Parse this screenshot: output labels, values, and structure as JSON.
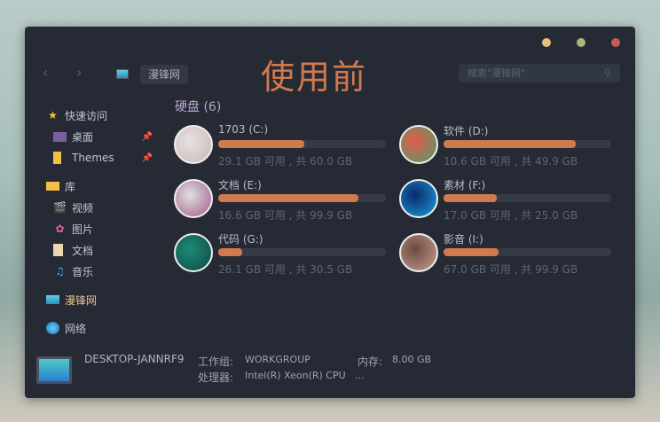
{
  "window": {
    "controls": [
      {
        "name": "minimize",
        "color": "#e8c07a"
      },
      {
        "name": "maximize",
        "color": "#a8b87a"
      },
      {
        "name": "close",
        "color": "#c85a5a"
      }
    ]
  },
  "nav": {
    "back": "‹",
    "forward": "›",
    "breadcrumb": "漫锋网"
  },
  "overlay_text": "使用前",
  "search": {
    "placeholder": "搜索\"漫锋网\"",
    "icon": "search-icon"
  },
  "sidebar": {
    "quick_access": "快速访问",
    "quick_items": [
      {
        "label": "桌面",
        "pinned": true
      },
      {
        "label": "Themes",
        "pinned": true
      }
    ],
    "library": "库",
    "library_items": [
      {
        "label": "视频"
      },
      {
        "label": "图片"
      },
      {
        "label": "文档"
      },
      {
        "label": "音乐"
      }
    ],
    "this_pc": "漫锋网",
    "network": "网络"
  },
  "section_title": "硬盘 (6)",
  "drives": [
    {
      "name": "1703 (C:)",
      "status": "29.1 GB 可用 , 共 60.0 GB",
      "used_fraction": 0.515,
      "colors": [
        "#e8e0e0",
        "#c9b8b8"
      ]
    },
    {
      "name": "软件 (D:)",
      "status": "10.6 GB 可用 , 共 49.9 GB",
      "used_fraction": 0.79,
      "colors": [
        "#e25b4b",
        "#4c9f6a"
      ]
    },
    {
      "name": "文档 (E:)",
      "status": "16.6 GB 可用 , 共 99.9 GB",
      "used_fraction": 0.834,
      "colors": [
        "#e0e0e0",
        "#a05a8a"
      ]
    },
    {
      "name": "素材 (F:)",
      "status": "17.0 GB 可用 , 共 25.0 GB",
      "used_fraction": 0.32,
      "colors": [
        "#0a2a6a",
        "#1a9fe0"
      ]
    },
    {
      "name": "代码 (G:)",
      "status": "26.1 GB 可用 , 共 30.5 GB",
      "used_fraction": 0.144,
      "colors": [
        "#1e8a7a",
        "#0e4a40"
      ]
    },
    {
      "name": "影音 (I:)",
      "status": "67.0 GB 可用 , 共 99.9 GB",
      "used_fraction": 0.33,
      "colors": [
        "#6a4a40",
        "#c8a090"
      ]
    }
  ],
  "accent": "#d07a4e",
  "footer": {
    "computer": "DESKTOP-JANNRF9",
    "workgroup_label": "工作组:",
    "workgroup": "WORKGROUP",
    "memory_label": "内存:",
    "memory": "8.00 GB",
    "cpu_label": "处理器:",
    "cpu": "Intel(R) Xeon(R) CPU   ..."
  }
}
